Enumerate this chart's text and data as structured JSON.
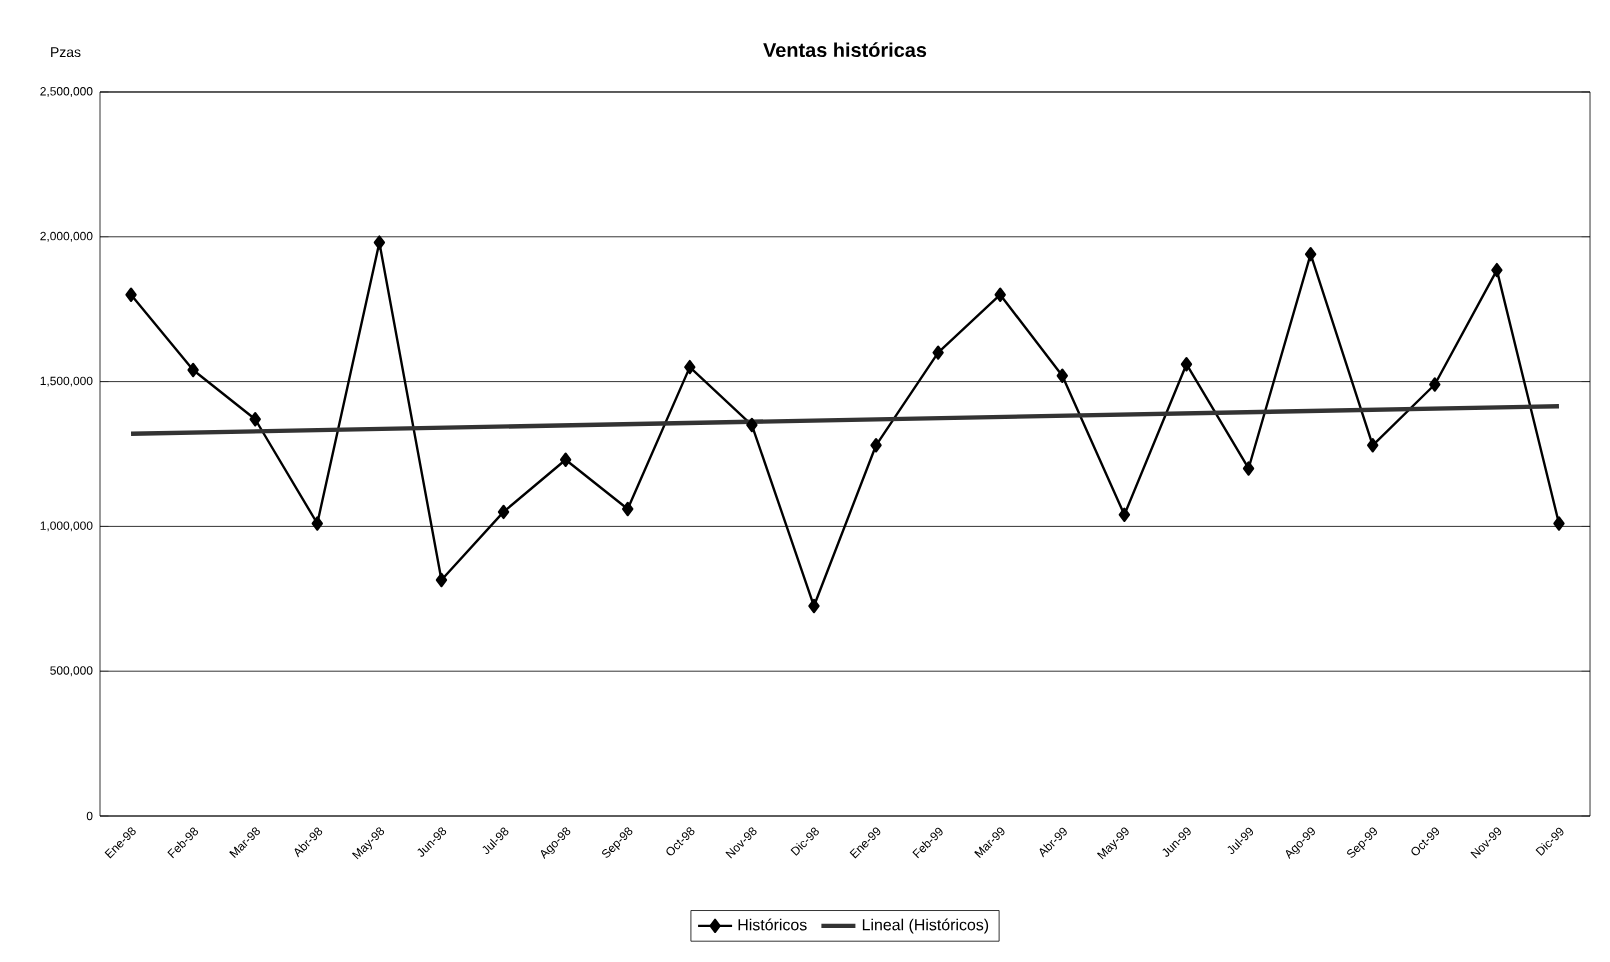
{
  "chart_data": {
    "type": "line",
    "title": "Ventas históricas",
    "ylabel": "Pzas",
    "categories": [
      "Ene-98",
      "Feb-98",
      "Mar-98",
      "Abr-98",
      "May-98",
      "Jun-98",
      "Jul-98",
      "Ago-98",
      "Sep-98",
      "Oct-98",
      "Nov-98",
      "Dic-98",
      "Ene-99",
      "Feb-99",
      "Mar-99",
      "Abr-99",
      "May-99",
      "Jun-99",
      "Jul-99",
      "Ago-99",
      "Sep-99",
      "Oct-99",
      "Nov-99",
      "Dic-99"
    ],
    "series": [
      {
        "name": "Históricos",
        "color": "#000000",
        "marker": "diamond",
        "values": [
          1800000,
          1540000,
          1370000,
          1010000,
          1980000,
          815000,
          1050000,
          1230000,
          1060000,
          1550000,
          1350000,
          725000,
          1280000,
          1600000,
          1800000,
          1520000,
          1040000,
          1560000,
          1200000,
          1940000,
          1280000,
          1490000,
          1885000,
          1010000
        ]
      },
      {
        "name": "Lineal (Históricos)",
        "type": "line",
        "color": "#333333",
        "marker": "none",
        "x": [
          "Ene-98",
          "Dic-99"
        ],
        "values": [
          1320000,
          1415000
        ]
      }
    ],
    "ylim": [
      0,
      2500000
    ],
    "yticks": [
      0,
      {
        "value": 500000,
        "label": "500,000"
      },
      {
        "value": 1000000,
        "label": "1,000,000"
      },
      {
        "value": 1500000,
        "label": "1,500,000"
      },
      {
        "value": 2000000,
        "label": "2,000,000"
      },
      {
        "value": 2500000,
        "label": "2,500,000"
      }
    ],
    "grid": "y",
    "legend": "bottom",
    "line_style": "solid"
  }
}
